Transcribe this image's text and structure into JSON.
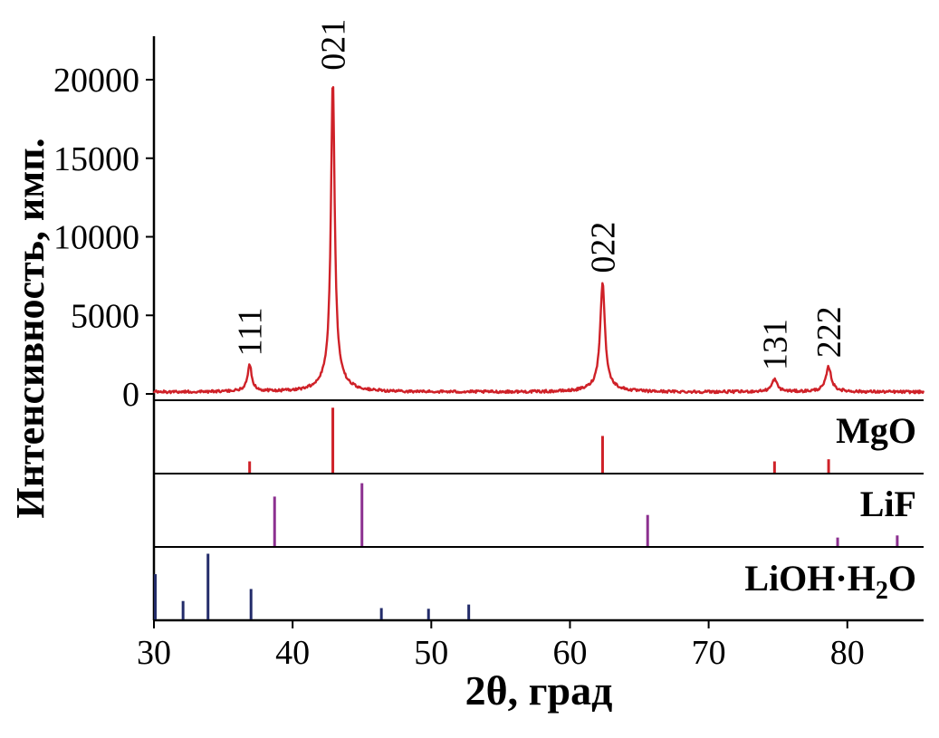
{
  "page": {
    "background": "#ffffff"
  },
  "axes": {
    "x": {
      "title": "2θ, град",
      "ticks": [
        30,
        40,
        50,
        60,
        70,
        80
      ],
      "min": 30,
      "max": 85.5
    },
    "y": {
      "title": "Интенсивность, имп.",
      "ticks": [
        0,
        5000,
        10000,
        15000,
        20000
      ],
      "min": 0,
      "max": 22800
    }
  },
  "chart_data": {
    "type": "line",
    "title": "",
    "xlabel": "2θ, град",
    "ylabel": "Интенсивность, имп.",
    "xlim": [
      30,
      85.5
    ],
    "ylim": [
      0,
      22800
    ],
    "grid": false,
    "curve_color": "#cf2128",
    "baseline_counts": 120,
    "noise_counts": 85,
    "peaks": [
      {
        "hkl": "111",
        "two_theta": 36.9,
        "intensity": 1700,
        "hwhm": 0.18
      },
      {
        "hkl": "021",
        "two_theta": 42.9,
        "intensity": 19900,
        "hwhm": 0.16
      },
      {
        "hkl": "022",
        "two_theta": 62.35,
        "intensity": 7000,
        "hwhm": 0.2
      },
      {
        "hkl": "131",
        "two_theta": 74.75,
        "intensity": 800,
        "hwhm": 0.22
      },
      {
        "hkl": "222",
        "two_theta": 78.65,
        "intensity": 1600,
        "hwhm": 0.22
      }
    ],
    "reference_patterns": [
      {
        "name": "MgO",
        "name_parts": {
          "pre": "MgO",
          "sub": "",
          "post": ""
        },
        "color": "#cf2128",
        "sticks": [
          {
            "x": 36.9,
            "h": 0.16
          },
          {
            "x": 42.9,
            "h": 0.92
          },
          {
            "x": 62.35,
            "h": 0.52
          },
          {
            "x": 74.75,
            "h": 0.16
          },
          {
            "x": 78.65,
            "h": 0.19
          }
        ]
      },
      {
        "name": "LiF",
        "name_parts": {
          "pre": "LiF",
          "sub": "",
          "post": ""
        },
        "color": "#8c3090",
        "sticks": [
          {
            "x": 38.7,
            "h": 0.7
          },
          {
            "x": 45.0,
            "h": 0.89
          },
          {
            "x": 65.6,
            "h": 0.44
          },
          {
            "x": 79.3,
            "h": 0.12
          },
          {
            "x": 83.6,
            "h": 0.15
          }
        ]
      },
      {
        "name": "LiOH·H2O",
        "name_parts": {
          "pre": "LiOH·H",
          "sub": "2",
          "post": "O"
        },
        "color": "#232c6a",
        "sticks": [
          {
            "x": 30.1,
            "h": 0.64
          },
          {
            "x": 32.1,
            "h": 0.26
          },
          {
            "x": 33.9,
            "h": 0.93
          },
          {
            "x": 37.0,
            "h": 0.43
          },
          {
            "x": 46.4,
            "h": 0.16
          },
          {
            "x": 49.8,
            "h": 0.15
          },
          {
            "x": 52.7,
            "h": 0.21
          }
        ]
      }
    ]
  }
}
